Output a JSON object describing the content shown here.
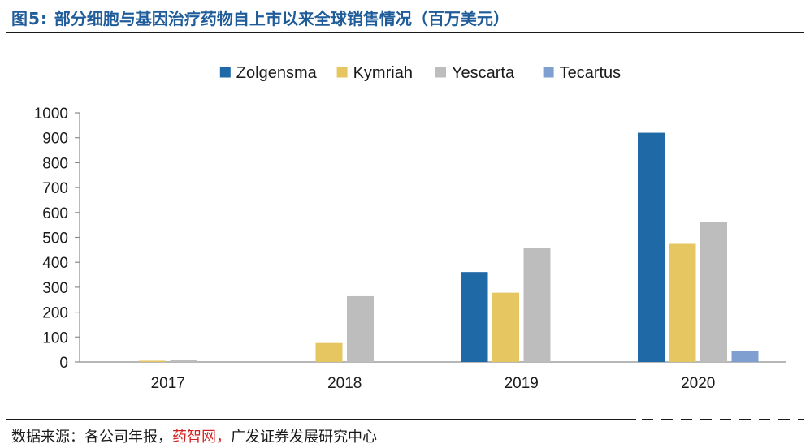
{
  "header": {
    "figure_label": "图5:",
    "title": "部分细胞与基因治疗药物自上市以来全球销售情况（百万美元）"
  },
  "footer": {
    "source_prefix": "数据来源：各公司年报，",
    "source_highlight": "药智网，",
    "source_suffix": "广发证券发展研究中心"
  },
  "chart_data": {
    "type": "bar",
    "title": "部分细胞与基因治疗药物自上市以来全球销售情况（百万美元）",
    "categories": [
      "2017",
      "2018",
      "2019",
      "2020"
    ],
    "ylim": [
      0,
      1000
    ],
    "yticks": [
      0,
      100,
      200,
      300,
      400,
      500,
      600,
      700,
      800,
      900,
      1000
    ],
    "grid": false,
    "legend_position": "top-center",
    "series": [
      {
        "name": "Zolgensma",
        "color": "#1f69a6",
        "values": [
          0,
          0,
          361,
          920
        ]
      },
      {
        "name": "Kymriah",
        "color": "#e6c660",
        "values": [
          5,
          76,
          278,
          474
        ]
      },
      {
        "name": "Yescarta",
        "color": "#bdbdbd",
        "values": [
          7,
          264,
          456,
          563
        ]
      },
      {
        "name": "Tecartus",
        "color": "#7f9fd1",
        "values": [
          0,
          0,
          0,
          44
        ]
      }
    ]
  }
}
